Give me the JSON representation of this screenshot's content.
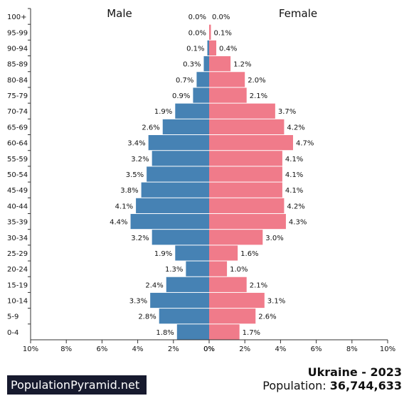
{
  "chart_data": {
    "type": "bar",
    "orientation": "horizontal-pyramid",
    "left_title": "Male",
    "right_title": "Female",
    "categories": [
      "100+",
      "95-99",
      "90-94",
      "85-89",
      "80-84",
      "75-79",
      "70-74",
      "65-69",
      "60-64",
      "55-59",
      "50-54",
      "45-49",
      "40-44",
      "35-39",
      "30-34",
      "25-29",
      "20-24",
      "15-19",
      "10-14",
      "5-9",
      "0-4"
    ],
    "series": [
      {
        "name": "Male",
        "color": "#4682b4",
        "values": [
          0.0,
          0.0,
          0.1,
          0.3,
          0.7,
          0.9,
          1.9,
          2.6,
          3.4,
          3.2,
          3.5,
          3.8,
          4.1,
          4.4,
          3.2,
          1.9,
          1.3,
          2.4,
          3.3,
          2.8,
          1.8
        ],
        "labels": [
          "0.0%",
          "0.0%",
          "0.1%",
          "0.3%",
          "0.7%",
          "0.9%",
          "1.9%",
          "2.6%",
          "3.4%",
          "3.2%",
          "3.5%",
          "3.8%",
          "4.1%",
          "4.4%",
          "3.2%",
          "1.9%",
          "1.3%",
          "2.4%",
          "3.3%",
          "2.8%",
          "1.8%"
        ]
      },
      {
        "name": "Female",
        "color": "#f07b8a",
        "values": [
          0.0,
          0.1,
          0.4,
          1.2,
          2.0,
          2.1,
          3.7,
          4.2,
          4.7,
          4.1,
          4.1,
          4.1,
          4.2,
          4.3,
          3.0,
          1.6,
          1.0,
          2.1,
          3.1,
          2.6,
          1.7
        ],
        "labels": [
          "0.0%",
          "0.1%",
          "0.4%",
          "1.2%",
          "2.0%",
          "2.1%",
          "3.7%",
          "4.2%",
          "4.7%",
          "4.1%",
          "4.1%",
          "4.1%",
          "4.2%",
          "4.3%",
          "3.0%",
          "1.6%",
          "1.0%",
          "2.1%",
          "3.1%",
          "2.6%",
          "1.7%"
        ]
      }
    ],
    "xlim": [
      0,
      10
    ],
    "left_ticks": [
      "10%",
      "8%",
      "6%",
      "4%",
      "2%",
      "0%"
    ],
    "right_ticks": [
      "0%",
      "2%",
      "4%",
      "6%",
      "8%",
      "10%"
    ]
  },
  "branding": {
    "site": "PopulationPyramid.net"
  },
  "summary": {
    "title": "Ukraine - 2023",
    "population_label": "Population:",
    "population_value": "36,744,633"
  }
}
